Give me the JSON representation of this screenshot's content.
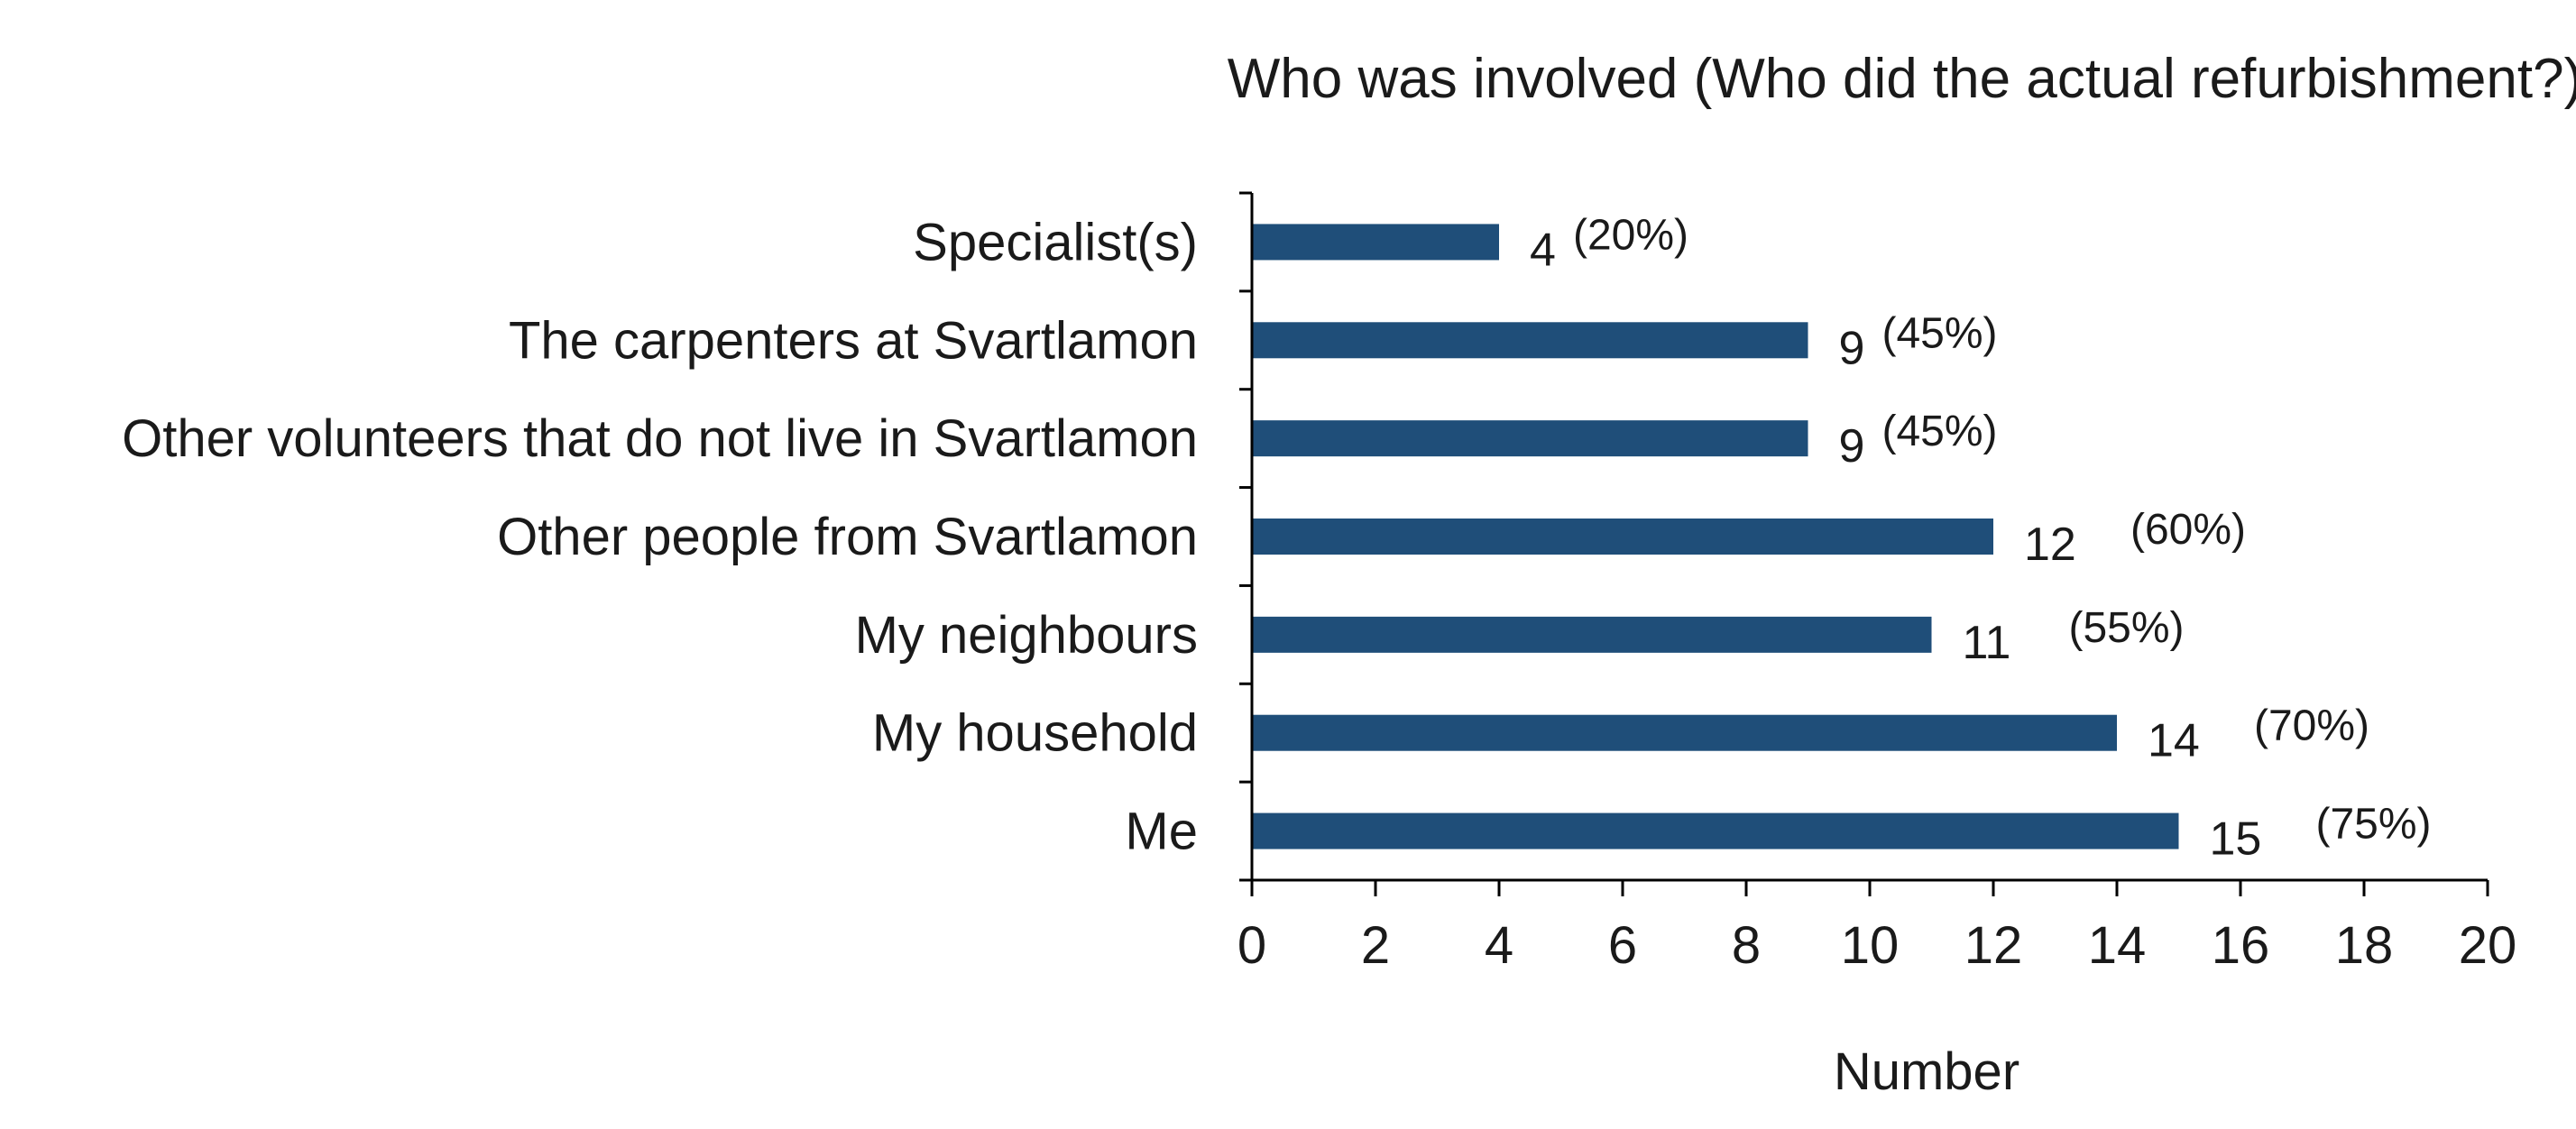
{
  "chart_data": {
    "type": "bar",
    "orientation": "horizontal",
    "title": "Who was involved (Who did the actual refurbishment?)",
    "xlabel": "Number",
    "ylabel": "",
    "categories": [
      "Specialist(s)",
      "The carpenters at Svartlamon",
      "Other volunteers that do not live in Svartlamon",
      "Other people from Svartlamon",
      "My neighbours",
      "My household",
      "Me"
    ],
    "values": [
      4,
      9,
      9,
      12,
      11,
      14,
      15
    ],
    "value_labels": [
      "4",
      "9",
      "9",
      "12",
      "11",
      "14",
      "15"
    ],
    "percent_labels": [
      "(20%)",
      "(45%)",
      "(45%)",
      "(60%)",
      "(55%)",
      "(70%)",
      "(75%)"
    ],
    "xlim": [
      0,
      20
    ],
    "xticks": [
      0,
      2,
      4,
      6,
      8,
      10,
      12,
      14,
      16,
      18,
      20
    ],
    "grid": false,
    "legend": "none",
    "bar_color": "#1f4e79"
  }
}
